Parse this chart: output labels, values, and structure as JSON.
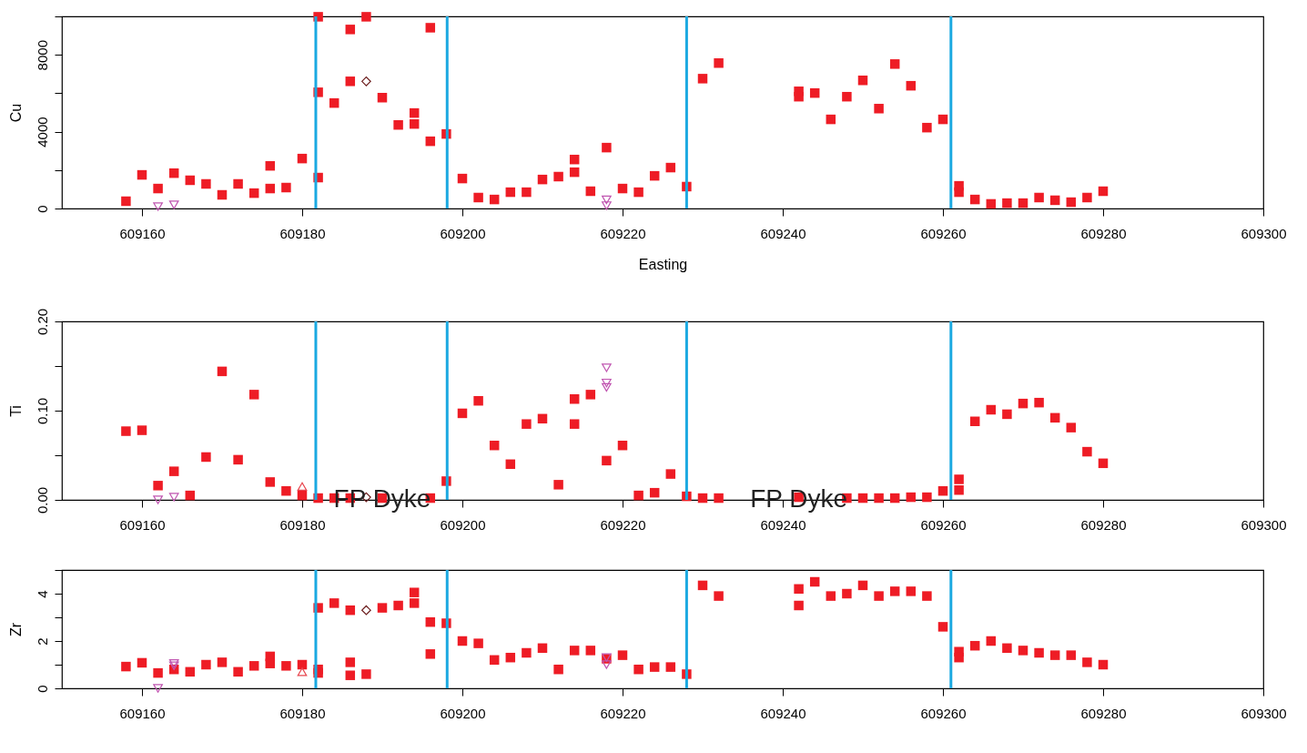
{
  "chart_data": [
    {
      "type": "scatter",
      "xlabel": "Easting",
      "ylabel": "Cu",
      "xlim": [
        609150,
        609300
      ],
      "xticks": [
        609160,
        609180,
        609200,
        609220,
        609240,
        609260,
        609280,
        609300
      ],
      "ylim": [
        0,
        10000
      ],
      "yticks": [
        0,
        {
          "value": 2000,
          "label": null
        },
        4000,
        {
          "value": 6000,
          "label": null
        },
        8000,
        {
          "value": 10000,
          "label": null
        }
      ],
      "grid": false,
      "series": [
        {
          "type": "scatter",
          "marker": "square",
          "color": "#ee1c25",
          "x": [
            609158,
            609160,
            609162,
            609164,
            609166,
            609168,
            609170,
            609172,
            609174,
            609176,
            609176,
            609178,
            609180,
            609182,
            609182,
            609182,
            609184,
            609186,
            609186,
            609188,
            609190,
            609192,
            609194,
            609194,
            609196,
            609196,
            609198,
            609200,
            609202,
            609204,
            609206,
            609208,
            609210,
            609212,
            609214,
            609214,
            609216,
            609218,
            609220,
            609222,
            609224,
            609226,
            609228,
            609230,
            609232,
            609242,
            609242,
            609244,
            609246,
            609248,
            609250,
            609252,
            609254,
            609256,
            609258,
            609260,
            609262,
            609262,
            609264,
            609266,
            609268,
            609270,
            609272,
            609274,
            609276,
            609278,
            609280
          ],
          "values": [
            380,
            1750,
            1040,
            1840,
            1470,
            1280,
            710,
            1280,
            800,
            2220,
            1040,
            1090,
            2600,
            9980,
            6050,
            1610,
            5490,
            9320,
            6620,
            9980,
            5770,
            4350,
            4970,
            4400,
            9410,
            3500,
            3880,
            1560,
            570,
            470,
            850,
            850,
            1510,
            1660,
            2550,
            1890,
            900,
            3170,
            1040,
            850,
            1700,
            2130,
            1140,
            6760,
            7570,
            6100,
            5820,
            6010,
            4640,
            5820,
            6670,
            5200,
            7520,
            6390,
            4210,
            4640,
            1180,
            850,
            470,
            240,
            280,
            280,
            570,
            430,
            330,
            570,
            900
          ]
        },
        {
          "type": "scatter",
          "marker": "triangle-down",
          "color": "#c055b0",
          "x": [
            609162,
            609164,
            609218,
            609218
          ],
          "values": [
            100,
            190,
            450,
            150
          ]
        },
        {
          "type": "scatter",
          "marker": "diamond",
          "color": "#6b1c1c",
          "x": [
            609188
          ],
          "values": [
            6620
          ]
        }
      ],
      "ref_lines": [
        {
          "axis": "x",
          "value": 609181.7,
          "color": "#1ba9e1"
        },
        {
          "axis": "x",
          "value": 609198.1,
          "color": "#1ba9e1"
        },
        {
          "axis": "x",
          "value": 609228,
          "color": "#1ba9e1"
        },
        {
          "axis": "x",
          "value": 609261,
          "color": "#1ba9e1"
        }
      ]
    },
    {
      "type": "scatter",
      "ylabel": "Ti",
      "xlim": [
        609150,
        609300
      ],
      "xticks": [
        609160,
        609180,
        609200,
        609220,
        609240,
        609260,
        609280,
        609300
      ],
      "ylim": [
        0,
        0.2
      ],
      "yticks": [
        {
          "value": 0,
          "label": "0.00"
        },
        {
          "value": 0.05,
          "label": null
        },
        {
          "value": 0.1,
          "label": "0.10"
        },
        {
          "value": 0.15,
          "label": null
        },
        {
          "value": 0.2,
          "label": "0.20"
        }
      ],
      "grid": false,
      "series": [
        {
          "type": "scatter",
          "marker": "square",
          "color": "#ee1c25",
          "x": [
            609158,
            609160,
            609162,
            609164,
            609166,
            609168,
            609170,
            609172,
            609174,
            609176,
            609178,
            609180,
            609182,
            609184,
            609186,
            609190,
            609192,
            609194,
            609196,
            609198,
            609200,
            609202,
            609204,
            609206,
            609208,
            609210,
            609212,
            609214,
            609214,
            609216,
            609218,
            609220,
            609222,
            609224,
            609226,
            609228,
            609230,
            609232,
            609242,
            609244,
            609246,
            609248,
            609250,
            609252,
            609254,
            609256,
            609258,
            609260,
            609262,
            609262,
            609264,
            609266,
            609268,
            609270,
            609272,
            609274,
            609276,
            609278,
            609280
          ],
          "values": [
            0.077,
            0.078,
            0.016,
            0.032,
            0.005,
            0.048,
            0.144,
            0.045,
            0.118,
            0.02,
            0.01,
            0.005,
            0.002,
            0.002,
            0.002,
            0.002,
            null,
            null,
            0.002,
            0.021,
            0.097,
            0.111,
            0.061,
            0.04,
            0.085,
            0.091,
            0.017,
            0.113,
            0.085,
            0.118,
            0.044,
            0.061,
            0.005,
            0.008,
            0.029,
            0.004,
            0.002,
            0.002,
            0.003,
            null,
            null,
            0.002,
            0.002,
            0.002,
            0.002,
            0.003,
            0.003,
            0.01,
            0.011,
            0.023,
            0.088,
            0.101,
            0.096,
            0.108,
            0.109,
            0.092,
            0.081,
            0.054,
            0.041
          ]
        },
        {
          "type": "scatter",
          "marker": "triangle-down",
          "color": "#c055b0",
          "x": [
            609162,
            609164,
            609218,
            609218,
            609218
          ],
          "values": [
            0.0,
            0.003,
            0.148,
            0.131,
            0.126
          ]
        },
        {
          "type": "scatter",
          "marker": "triangle",
          "color": "#e8474f",
          "x": [
            609180
          ],
          "values": [
            0.015
          ]
        },
        {
          "type": "scatter",
          "marker": "diamond",
          "color": "#6b1c1c",
          "x": [
            609188
          ],
          "values": [
            0.003
          ]
        }
      ],
      "ref_lines": [
        {
          "axis": "x",
          "value": 609181.7,
          "color": "#1ba9e1"
        },
        {
          "axis": "x",
          "value": 609198.1,
          "color": "#1ba9e1"
        },
        {
          "axis": "x",
          "value": 609228,
          "color": "#1ba9e1"
        },
        {
          "axis": "x",
          "value": 609261,
          "color": "#1ba9e1"
        }
      ],
      "annotations": [
        {
          "text": "FP Dyke",
          "x": 609190,
          "y": 0
        },
        {
          "text": "FP Dyke",
          "x": 609242,
          "y": 0
        }
      ]
    },
    {
      "type": "scatter",
      "ylabel": "Zr",
      "xlim": [
        609150,
        609300
      ],
      "xticks": [
        609160,
        609180,
        609200,
        609220,
        609240,
        609260,
        609280,
        609300
      ],
      "ylim": [
        0,
        5
      ],
      "yticks": [
        0,
        {
          "value": 1,
          "label": null
        },
        2,
        {
          "value": 3,
          "label": null
        },
        4,
        {
          "value": 5,
          "label": null
        }
      ],
      "grid": false,
      "series": [
        {
          "type": "scatter",
          "marker": "square",
          "color": "#ee1c25",
          "x": [
            609158,
            609160,
            609162,
            609164,
            609166,
            609168,
            609170,
            609172,
            609174,
            609176,
            609176,
            609178,
            609180,
            609182,
            609182,
            609182,
            609184,
            609186,
            609186,
            609186,
            609188,
            609190,
            609192,
            609194,
            609194,
            609196,
            609196,
            609198,
            609200,
            609202,
            609204,
            609206,
            609208,
            609210,
            609212,
            609214,
            609216,
            609218,
            609220,
            609222,
            609224,
            609226,
            609228,
            609230,
            609232,
            609242,
            609242,
            609244,
            609246,
            609248,
            609250,
            609252,
            609254,
            609256,
            609258,
            609260,
            609262,
            609262,
            609264,
            609266,
            609268,
            609270,
            609272,
            609274,
            609276,
            609278,
            609280
          ],
          "values": [
            0.92,
            1.08,
            0.65,
            0.8,
            0.7,
            1.0,
            1.1,
            0.7,
            0.95,
            1.35,
            1.05,
            0.95,
            1.0,
            3.4,
            0.8,
            0.65,
            3.6,
            3.3,
            1.1,
            0.55,
            0.6,
            3.4,
            3.5,
            4.05,
            3.6,
            2.8,
            1.45,
            2.75,
            2.0,
            1.9,
            1.2,
            1.3,
            1.5,
            1.7,
            0.8,
            1.6,
            1.6,
            1.25,
            1.4,
            0.8,
            0.9,
            0.9,
            0.6,
            4.35,
            3.9,
            4.2,
            3.5,
            4.5,
            3.9,
            4.0,
            4.35,
            3.9,
            4.1,
            4.1,
            3.9,
            2.6,
            1.55,
            1.3,
            1.8,
            2.0,
            1.7,
            1.6,
            1.5,
            1.4,
            1.4,
            1.1,
            1.0
          ]
        },
        {
          "type": "scatter",
          "marker": "triangle-down",
          "color": "#c055b0",
          "x": [
            609162,
            609164,
            609164,
            609218,
            609218
          ],
          "values": [
            0.0,
            1.05,
            0.95,
            1.3,
            1.0
          ]
        },
        {
          "type": "scatter",
          "marker": "triangle",
          "color": "#e8474f",
          "x": [
            609180
          ],
          "values": [
            0.7
          ]
        },
        {
          "type": "scatter",
          "marker": "diamond",
          "color": "#6b1c1c",
          "x": [
            609188
          ],
          "values": [
            3.3
          ]
        }
      ],
      "ref_lines": [
        {
          "axis": "x",
          "value": 609181.7,
          "color": "#1ba9e1"
        },
        {
          "axis": "x",
          "value": 609198.1,
          "color": "#1ba9e1"
        },
        {
          "axis": "x",
          "value": 609228,
          "color": "#1ba9e1"
        },
        {
          "axis": "x",
          "value": 609261,
          "color": "#1ba9e1"
        }
      ]
    }
  ]
}
